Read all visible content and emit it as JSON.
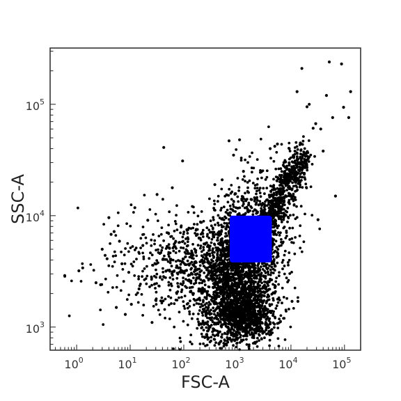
{
  "chart_data": {
    "type": "scatter",
    "title": "",
    "xlabel": "FSC-A",
    "ylabel": "SSC-A",
    "x_scale": "log",
    "y_scale": "log",
    "xlim": [
      0.32,
      200000
    ],
    "ylim": [
      620,
      320000
    ],
    "grid": false,
    "legend": "none",
    "x_ticks": [
      {
        "value": 1,
        "base": "10",
        "exp": "0"
      },
      {
        "value": 10,
        "base": "10",
        "exp": "1"
      },
      {
        "value": 100,
        "base": "10",
        "exp": "2"
      },
      {
        "value": 1000,
        "base": "10",
        "exp": "3"
      },
      {
        "value": 10000,
        "base": "10",
        "exp": "4"
      },
      {
        "value": 100000,
        "base": "10",
        "exp": "5"
      }
    ],
    "y_ticks": [
      {
        "value": 1000,
        "base": "10",
        "exp": "3"
      },
      {
        "value": 10000,
        "base": "10",
        "exp": "4"
      },
      {
        "value": 100000,
        "base": "10",
        "exp": "5"
      }
    ],
    "series": [
      {
        "color": "#000000",
        "description_points": [
          [
            0.6,
            2900
          ],
          [
            1.1,
            3200
          ],
          [
            1.3,
            3400
          ],
          [
            2.3,
            2500
          ],
          [
            2.8,
            2400
          ],
          [
            3.0,
            5000
          ],
          [
            3.4,
            4400
          ],
          [
            3.7,
            4100
          ],
          [
            4.0,
            9600
          ],
          [
            4.4,
            6800
          ],
          [
            5.0,
            7200
          ],
          [
            5.5,
            1500
          ],
          [
            6.3,
            5900
          ],
          [
            7.0,
            3700
          ],
          [
            8.1,
            1300
          ],
          [
            9.4,
            3100
          ],
          [
            10.5,
            1600
          ],
          [
            12.2,
            11800
          ],
          [
            14.6,
            2200
          ],
          [
            17.2,
            5400
          ],
          [
            21.3,
            9100
          ],
          [
            25.6,
            1100
          ],
          [
            31.7,
            15500
          ],
          [
            42.3,
            41000
          ],
          [
            54.1,
            5100
          ],
          [
            61.0,
            17800
          ],
          [
            95.0,
            31000
          ],
          [
            120,
            7500
          ],
          [
            180,
            6800
          ],
          [
            230,
            1100
          ],
          [
            290,
            800
          ],
          [
            380,
            19000
          ],
          [
            520,
            21000
          ],
          [
            610,
            1400
          ],
          [
            700,
            47000
          ],
          [
            850,
            35000
          ],
          [
            1100,
            48000
          ],
          [
            1300,
            25000
          ],
          [
            1800,
            14000
          ],
          [
            2500,
            12500
          ],
          [
            3200,
            9500
          ],
          [
            4100,
            40000
          ],
          [
            5000,
            42000
          ],
          [
            5600,
            44000
          ],
          [
            6200,
            23000
          ],
          [
            7400,
            30000
          ],
          [
            9300,
            40000
          ],
          [
            10500,
            1700
          ],
          [
            11800,
            23000
          ],
          [
            13500,
            1700
          ],
          [
            15000,
            45000
          ],
          [
            18000,
            32000
          ],
          [
            20000,
            95000
          ],
          [
            22000,
            100000
          ],
          [
            26000,
            61000
          ],
          [
            29000,
            67000
          ],
          [
            32000,
            9200
          ],
          [
            36000,
            60000
          ],
          [
            40000,
            38000
          ],
          [
            46000,
            120000
          ],
          [
            52000,
            240000
          ],
          [
            60000,
            76000
          ],
          [
            68000,
            15000
          ],
          [
            88000,
            230000
          ],
          [
            96000,
            94000
          ],
          [
            120000,
            76000
          ],
          [
            130000,
            130000
          ],
          [
            16000,
            210000
          ],
          [
            13000,
            130000
          ]
        ]
      },
      {
        "color": "#0000ff",
        "description_region": {
          "x_min": 720,
          "x_max": 4400,
          "y_min": 3800,
          "y_max": 10000
        }
      }
    ]
  }
}
